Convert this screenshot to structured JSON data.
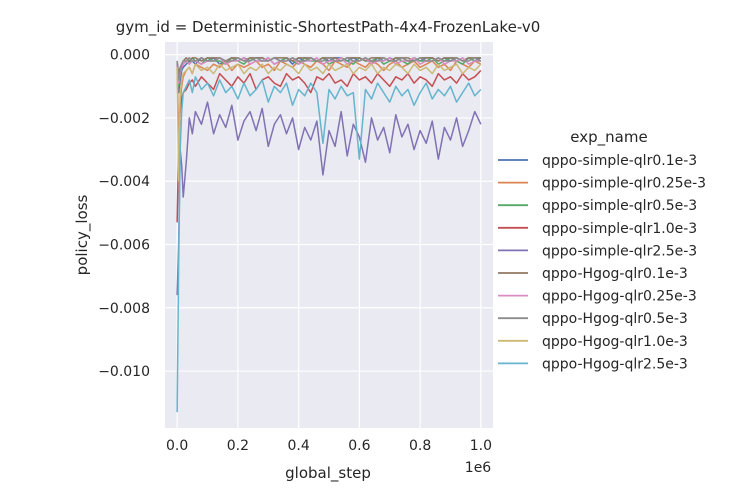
{
  "chart_data": {
    "type": "line",
    "title": "gym_id = Deterministic-ShortestPath-4x4-FrozenLake-v0",
    "xlabel": "global_step",
    "ylabel": "policy_loss",
    "x_offset_text": "1e6",
    "xlim": [
      -0.04,
      1.04
    ],
    "ylim": [
      -0.0118,
      0.0004
    ],
    "xticks": [
      0.0,
      0.2,
      0.4,
      0.6,
      0.8,
      1.0
    ],
    "xtick_labels": [
      "0.0",
      "0.2",
      "0.4",
      "0.6",
      "0.8",
      "1.0"
    ],
    "yticks": [
      0.0,
      -0.002,
      -0.004,
      -0.006,
      -0.008,
      -0.01
    ],
    "ytick_labels": [
      "0.000",
      "−0.002",
      "−0.004",
      "−0.006",
      "−0.008",
      "−0.010"
    ],
    "grid": true,
    "legend": {
      "title": "exp_name",
      "placement": "right-outside"
    },
    "x": [
      0.0,
      0.005,
      0.01,
      0.015,
      0.02,
      0.03,
      0.04,
      0.05,
      0.06,
      0.08,
      0.1,
      0.12,
      0.14,
      0.16,
      0.18,
      0.2,
      0.22,
      0.24,
      0.26,
      0.28,
      0.3,
      0.32,
      0.34,
      0.36,
      0.38,
      0.4,
      0.42,
      0.44,
      0.46,
      0.48,
      0.5,
      0.52,
      0.54,
      0.56,
      0.58,
      0.6,
      0.62,
      0.64,
      0.66,
      0.68,
      0.7,
      0.72,
      0.74,
      0.76,
      0.78,
      0.8,
      0.82,
      0.84,
      0.86,
      0.88,
      0.9,
      0.92,
      0.94,
      0.96,
      0.98,
      1.0
    ],
    "series": [
      {
        "name": "qppo-simple-qlr0.1e-3",
        "color": "#4c72b0",
        "values": [
          -0.0003,
          -0.0012,
          -0.0008,
          -0.0005,
          -0.0004,
          -0.0003,
          -0.0002,
          -0.0002,
          -0.0003,
          -0.0001,
          -0.0002,
          -0.0001,
          -0.0003,
          -0.0002,
          -0.0001,
          -0.0002,
          -0.0001,
          -0.0002,
          -0.0001,
          -0.0001,
          -0.0002,
          -0.0001,
          -0.0002,
          -0.0001,
          -0.0003,
          -0.0001,
          -0.0002,
          -0.0001,
          -0.0002,
          -0.0001,
          -0.0002,
          -0.0001,
          -0.0001,
          -0.0002,
          -0.0001,
          -0.0002,
          -0.0001,
          -0.0003,
          -0.0001,
          -0.0002,
          -0.0001,
          -0.0002,
          -0.0001,
          -0.0002,
          -0.0001,
          -0.0002,
          -0.0001,
          -0.0001,
          -0.0002,
          -0.0001,
          -0.0002,
          -0.0001,
          -0.0002,
          -0.0001,
          -0.0002,
          -0.0001
        ]
      },
      {
        "name": "qppo-simple-qlr0.25e-3",
        "color": "#dd8452",
        "values": [
          -0.0004,
          -0.0025,
          -0.0015,
          -0.001,
          -0.0007,
          -0.0005,
          -0.0004,
          -0.0006,
          -0.0003,
          -0.0004,
          -0.0005,
          -0.0003,
          -0.0004,
          -0.0002,
          -0.0005,
          -0.0003,
          -0.0004,
          -0.0003,
          -0.0002,
          -0.0004,
          -0.0003,
          -0.0005,
          -0.0002,
          -0.0003,
          -0.0004,
          -0.0002,
          -0.0003,
          -0.0004,
          -0.0002,
          -0.0003,
          -0.0005,
          -0.0002,
          -0.0003,
          -0.0004,
          -0.0002,
          -0.0003,
          -0.0004,
          -0.0002,
          -0.0003,
          -0.0005,
          -0.0003,
          -0.0002,
          -0.0004,
          -0.0003,
          -0.0002,
          -0.0004,
          -0.0003,
          -0.0002,
          -0.0004,
          -0.0003,
          -0.0005,
          -0.0002,
          -0.0003,
          -0.0004,
          -0.0002,
          -0.0003
        ]
      },
      {
        "name": "qppo-simple-qlr0.5e-3",
        "color": "#55a868",
        "values": [
          -0.0002,
          -0.001,
          -0.0006,
          -0.0004,
          -0.0003,
          -0.0002,
          -0.0003,
          -0.0001,
          -0.0002,
          -0.0003,
          -0.0001,
          -0.0002,
          -0.0002,
          -0.0003,
          -0.0001,
          -0.0002,
          -0.0003,
          -0.0001,
          -0.0002,
          -0.0002,
          -0.0001,
          -0.0003,
          -0.0002,
          -0.0001,
          -0.0002,
          -0.0003,
          -0.0001,
          -0.0002,
          -0.0002,
          -0.0001,
          -0.0003,
          -0.0002,
          -0.0001,
          -0.0002,
          -0.0003,
          -0.0001,
          -0.0002,
          -0.0002,
          -0.0001,
          -0.0003,
          -0.0002,
          -0.0001,
          -0.0002,
          -0.0003,
          -0.0001,
          -0.0002,
          -0.0002,
          -0.0001,
          -0.0003,
          -0.0002,
          -0.0001,
          -0.0002,
          -0.0003,
          -0.0001,
          -0.0002,
          -0.0002
        ]
      },
      {
        "name": "qppo-simple-qlr1.0e-3",
        "color": "#c44e52",
        "values": [
          -0.0053,
          -0.0028,
          -0.0018,
          -0.0014,
          -0.0012,
          -0.0011,
          -0.0009,
          -0.0008,
          -0.001,
          -0.0007,
          -0.0009,
          -0.0011,
          -0.0006,
          -0.0008,
          -0.001,
          -0.0007,
          -0.0009,
          -0.0006,
          -0.0011,
          -0.0008,
          -0.0007,
          -0.0009,
          -0.001,
          -0.0006,
          -0.0008,
          -0.0007,
          -0.0009,
          -0.0012,
          -0.0007,
          -0.0008,
          -0.0006,
          -0.0009,
          -0.0008,
          -0.001,
          -0.0006,
          -0.0008,
          -0.0007,
          -0.0009,
          -0.0006,
          -0.0008,
          -0.001,
          -0.0007,
          -0.0008,
          -0.0006,
          -0.0009,
          -0.0007,
          -0.0008,
          -0.001,
          -0.0006,
          -0.0008,
          -0.0007,
          -0.0009,
          -0.0006,
          -0.0008,
          -0.0007,
          -0.0005
        ]
      },
      {
        "name": "qppo-simple-qlr2.5e-3",
        "color": "#8172b3",
        "values": [
          -0.0076,
          -0.006,
          -0.003,
          -0.0035,
          -0.0045,
          -0.0034,
          -0.002,
          -0.0025,
          -0.0018,
          -0.0022,
          -0.0015,
          -0.0025,
          -0.0019,
          -0.0023,
          -0.0016,
          -0.0027,
          -0.0021,
          -0.0018,
          -0.0024,
          -0.0017,
          -0.0029,
          -0.0022,
          -0.0019,
          -0.0025,
          -0.002,
          -0.003,
          -0.0023,
          -0.0027,
          -0.0021,
          -0.0038,
          -0.0024,
          -0.0029,
          -0.0018,
          -0.0032,
          -0.0022,
          -0.0026,
          -0.0034,
          -0.002,
          -0.0027,
          -0.0023,
          -0.0031,
          -0.0019,
          -0.0026,
          -0.0022,
          -0.003,
          -0.0024,
          -0.0028,
          -0.0021,
          -0.0033,
          -0.0023,
          -0.0027,
          -0.002,
          -0.0029,
          -0.0024,
          -0.0018,
          -0.0022
        ]
      },
      {
        "name": "qppo-Hgog-qlr0.1e-3",
        "color": "#937860",
        "values": [
          -0.0002,
          -0.0006,
          -0.0004,
          -0.0003,
          -0.0002,
          -0.0001,
          -0.0002,
          -0.0001,
          -0.0001,
          -0.0002,
          -0.0001,
          -0.0001,
          -0.0001,
          -0.0002,
          -0.0001,
          -0.0001,
          -0.0002,
          -0.0001,
          -0.0001,
          -0.0001,
          -0.0002,
          -0.0001,
          -0.0001,
          -0.0001,
          -0.0002,
          -0.0001,
          -0.0001,
          -0.0001,
          -0.0002,
          -0.0001,
          -0.0001,
          -0.0001,
          -0.0002,
          -0.0001,
          -0.0001,
          -0.0001,
          -0.0002,
          -0.0001,
          -0.0001,
          -0.0001,
          -0.0002,
          -0.0001,
          -0.0001,
          -0.0001,
          -0.0002,
          -0.0001,
          -0.0001,
          -0.0001,
          -0.0002,
          -0.0001,
          -0.0001,
          -0.0001,
          -0.0002,
          -0.0001,
          -0.0001,
          -0.0001
        ]
      },
      {
        "name": "qppo-Hgog-qlr0.25e-3",
        "color": "#da8bc3",
        "values": [
          -0.0003,
          -0.0009,
          -0.0006,
          -0.0004,
          -0.0003,
          -0.0002,
          -0.0003,
          -0.0002,
          -0.0002,
          -0.0003,
          -0.0002,
          -0.0002,
          -0.0001,
          -0.0003,
          -0.0002,
          -0.0002,
          -0.0001,
          -0.0003,
          -0.0002,
          -0.0002,
          -0.0001,
          -0.0003,
          -0.0002,
          -0.0002,
          -0.0001,
          -0.0003,
          -0.0002,
          -0.0002,
          -0.0001,
          -0.0003,
          -0.0002,
          -0.0002,
          -0.0001,
          -0.0003,
          -0.0002,
          -0.0002,
          -0.0001,
          -0.0003,
          -0.0002,
          -0.0002,
          -0.0001,
          -0.0003,
          -0.0002,
          -0.0002,
          -0.0001,
          -0.0003,
          -0.0002,
          -0.0002,
          -0.0001,
          -0.0003,
          -0.0002,
          -0.0002,
          -0.0001,
          -0.0003,
          -0.0002,
          -0.0002
        ]
      },
      {
        "name": "qppo-Hgog-qlr0.5e-3",
        "color": "#8c8c8c",
        "values": [
          -0.0002,
          -0.0008,
          -0.0005,
          -0.0003,
          -0.0002,
          -0.0002,
          -0.0001,
          -0.0002,
          -0.0002,
          -0.0001,
          -0.0002,
          -0.0002,
          -0.0001,
          -0.0002,
          -0.0002,
          -0.0001,
          -0.0002,
          -0.0002,
          -0.0001,
          -0.0002,
          -0.0002,
          -0.0001,
          -0.0002,
          -0.0002,
          -0.0001,
          -0.0002,
          -0.0002,
          -0.0001,
          -0.0002,
          -0.0002,
          -0.0001,
          -0.0002,
          -0.0002,
          -0.0001,
          -0.0002,
          -0.0002,
          -0.0001,
          -0.0002,
          -0.0002,
          -0.0001,
          -0.0002,
          -0.0002,
          -0.0001,
          -0.0002,
          -0.0002,
          -0.0001,
          -0.0002,
          -0.0002,
          -0.0001,
          -0.0002,
          -0.0002,
          -0.0001,
          -0.0002,
          -0.0002,
          -0.0001,
          -0.0002
        ]
      },
      {
        "name": "qppo-Hgog-qlr1.0e-3",
        "color": "#ccb974",
        "values": [
          -0.0004,
          -0.004,
          -0.0012,
          -0.0008,
          -0.0006,
          -0.0005,
          -0.0004,
          -0.0006,
          -0.0003,
          -0.0005,
          -0.0004,
          -0.0006,
          -0.0003,
          -0.0005,
          -0.0004,
          -0.0003,
          -0.0006,
          -0.0004,
          -0.0005,
          -0.0003,
          -0.0006,
          -0.0004,
          -0.0005,
          -0.0003,
          -0.0004,
          -0.0006,
          -0.0003,
          -0.0005,
          -0.0004,
          -0.0006,
          -0.0003,
          -0.0005,
          -0.0004,
          -0.0003,
          -0.0006,
          -0.0004,
          -0.0005,
          -0.0003,
          -0.0006,
          -0.0004,
          -0.0005,
          -0.0003,
          -0.0004,
          -0.0006,
          -0.0003,
          -0.0005,
          -0.0004,
          -0.0006,
          -0.0003,
          -0.0005,
          -0.0004,
          -0.0003,
          -0.0006,
          -0.0004,
          -0.0005,
          -0.0003
        ]
      },
      {
        "name": "qppo-Hgog-qlr2.5e-3",
        "color": "#64b5cd",
        "values": [
          -0.0113,
          -0.0066,
          -0.003,
          -0.0018,
          -0.0012,
          -0.001,
          -0.0008,
          -0.0012,
          -0.0007,
          -0.0011,
          -0.0009,
          -0.0013,
          -0.0008,
          -0.0012,
          -0.001,
          -0.0014,
          -0.0009,
          -0.0013,
          -0.0011,
          -0.0008,
          -0.0015,
          -0.001,
          -0.0012,
          -0.0009,
          -0.0016,
          -0.0011,
          -0.0013,
          -0.0009,
          -0.0012,
          -0.0028,
          -0.0011,
          -0.0014,
          -0.001,
          -0.0013,
          -0.0012,
          -0.0033,
          -0.0011,
          -0.0014,
          -0.0009,
          -0.0012,
          -0.0015,
          -0.001,
          -0.0013,
          -0.0011,
          -0.0016,
          -0.0012,
          -0.0009,
          -0.0014,
          -0.0011,
          -0.0013,
          -0.001,
          -0.0015,
          -0.0012,
          -0.0009,
          -0.0013,
          -0.0011
        ]
      }
    ]
  }
}
